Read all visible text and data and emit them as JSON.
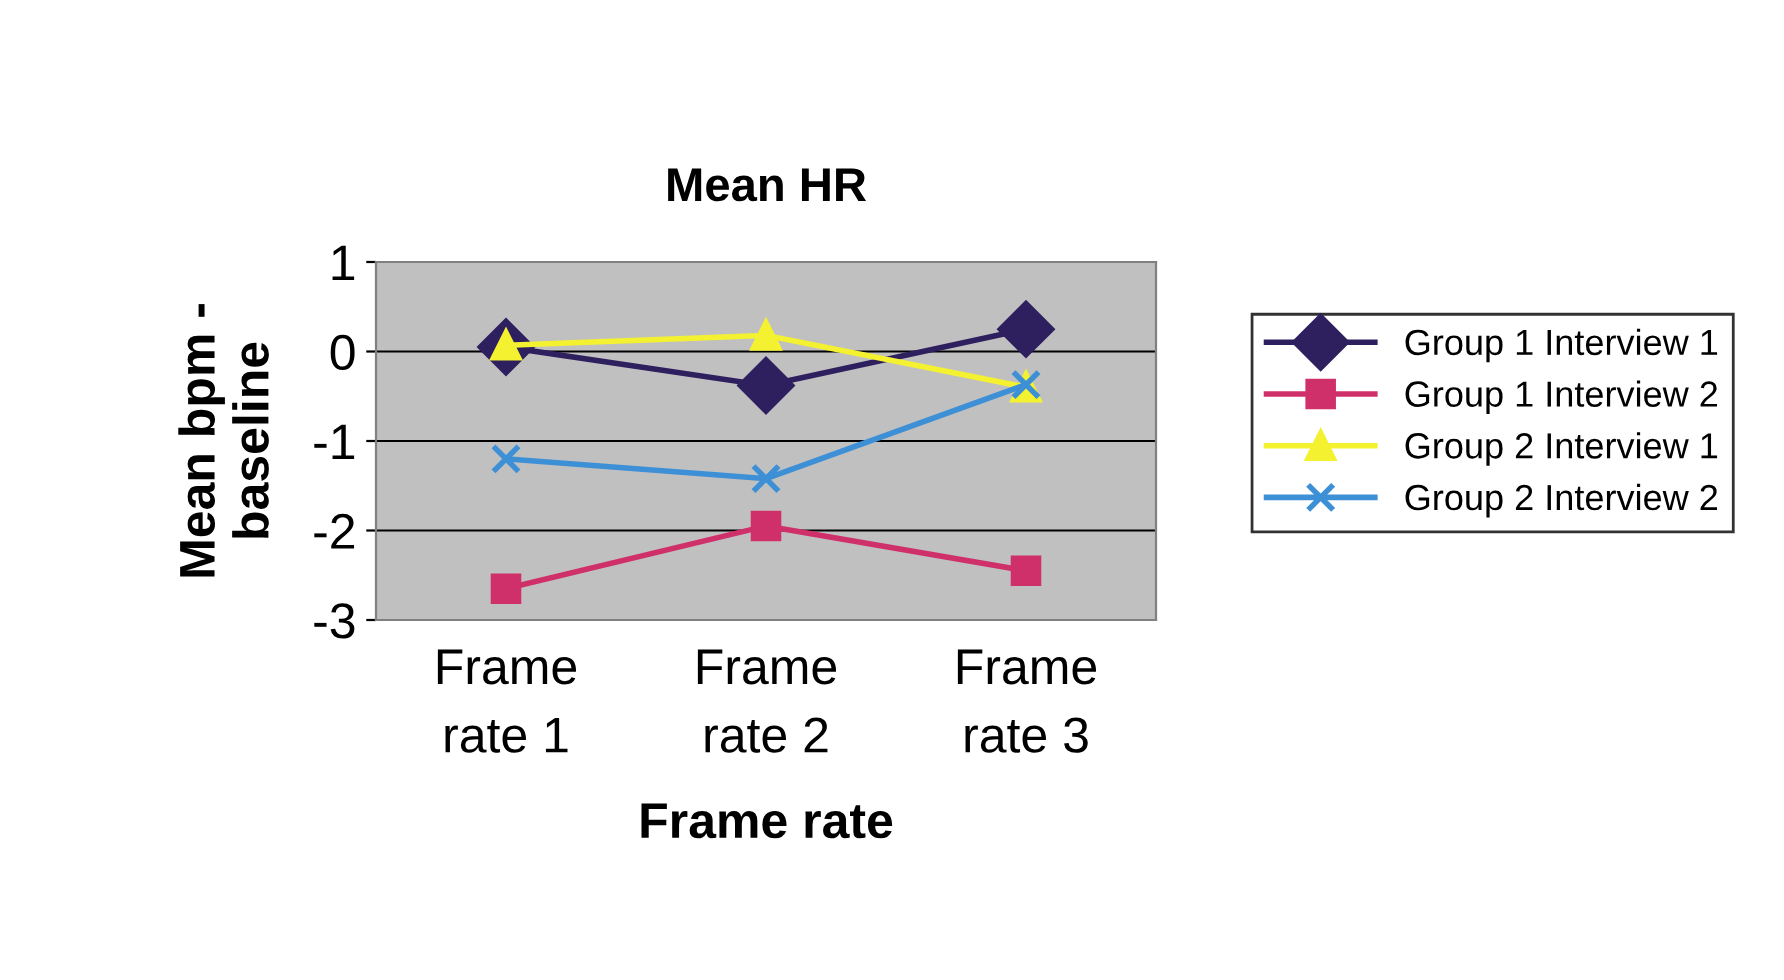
{
  "chart_data": {
    "type": "line",
    "title": "Mean HR",
    "xlabel": "Frame rate",
    "ylabel": "Mean bpm -\nbaseline",
    "categories": [
      "Frame\nrate 1",
      "Frame\nrate 2",
      "Frame\nrate 3"
    ],
    "series": [
      {
        "name": "Group 1 Interview 1",
        "color": "#2e1f5e",
        "marker": "diamond",
        "values": [
          0.05,
          -0.38,
          0.25
        ]
      },
      {
        "name": "Group 1 Interview 2",
        "color": "#d0306a",
        "marker": "square",
        "values": [
          -2.65,
          -1.95,
          -2.45
        ]
      },
      {
        "name": "Group 2 Interview 1",
        "color": "#f4f230",
        "marker": "triangle",
        "values": [
          0.07,
          0.18,
          -0.4
        ]
      },
      {
        "name": "Group 2 Interview 2",
        "color": "#3d8fd6",
        "marker": "cross",
        "values": [
          -1.2,
          -1.42,
          -0.37
        ]
      }
    ],
    "ylim": [
      -3,
      1
    ],
    "yticks": [
      -3,
      -2,
      -1,
      0,
      1
    ],
    "grid": "y",
    "legend": "right"
  }
}
